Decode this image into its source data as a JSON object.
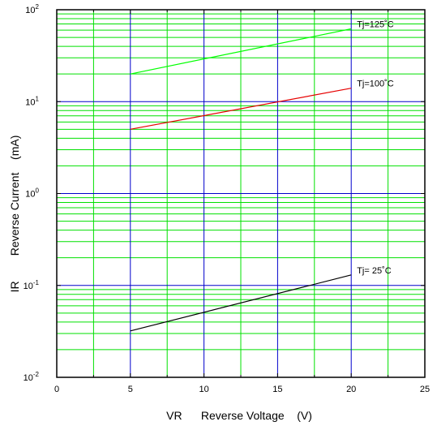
{
  "chart_data": {
    "type": "line",
    "title": "",
    "xlabel": "VR      Reverse Voltage    (V)",
    "ylabel": "IR        Reverse Current    (mA)",
    "xlim": [
      0,
      25
    ],
    "ylim": [
      0.01,
      100
    ],
    "yscale": "log",
    "grid": true,
    "x_ticks": [
      0,
      5,
      10,
      15,
      20,
      25
    ],
    "x_tick_labels": [
      "0",
      "5",
      "10",
      "15",
      "20",
      "25"
    ],
    "y_ticks": [
      0.01,
      0.1,
      1,
      10,
      100
    ],
    "y_tick_labels": [
      {
        "base": "10",
        "exp": "-2"
      },
      {
        "base": "10",
        "exp": "-1"
      },
      {
        "base": "10",
        "exp": "0"
      },
      {
        "base": "10",
        "exp": "1"
      },
      {
        "base": "10",
        "exp": "2"
      }
    ],
    "series": [
      {
        "label": "Tj=125˚C",
        "color": "#00ff00",
        "x": [
          5,
          20
        ],
        "y": [
          20,
          62
        ]
      },
      {
        "label": "Tj=100˚C",
        "color": "#e60000",
        "x": [
          5,
          20
        ],
        "y": [
          5.0,
          14
        ]
      },
      {
        "label": "Tj= 25˚C",
        "color": "#000000",
        "x": [
          5,
          20
        ],
        "y": [
          0.032,
          0.13
        ]
      }
    ],
    "colors": {
      "major_grid": "#0000cc",
      "minor_grid": "#00e000",
      "frame": "#000000"
    }
  }
}
